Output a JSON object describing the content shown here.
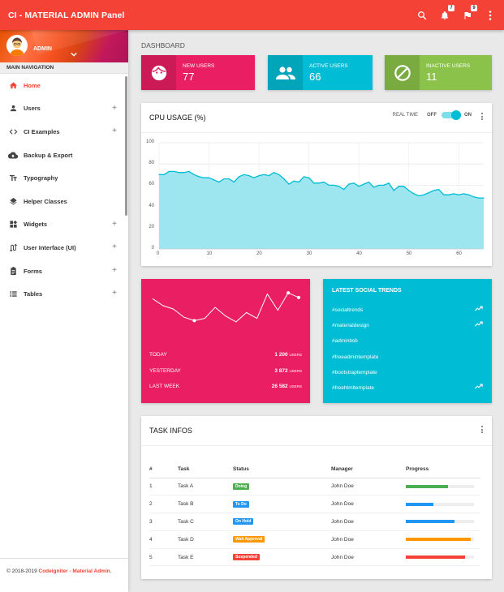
{
  "app": {
    "title": "CI - MATERIAL ADMIN Panel"
  },
  "topbar": {
    "notifications_count": "7",
    "tasks_count": "9",
    "icons": [
      "search-icon",
      "bell-icon",
      "flag-icon",
      "more-vert-icon"
    ]
  },
  "sidebar": {
    "user": {
      "name": "ADMIN"
    },
    "nav_header": "MAIN NAVIGATION",
    "items": [
      {
        "label": "Home",
        "icon": "home-icon",
        "active": true,
        "expandable": false
      },
      {
        "label": "Users",
        "icon": "person-icon",
        "expandable": true
      },
      {
        "label": "CI Examples",
        "icon": "code-icon",
        "expandable": true
      },
      {
        "label": "Backup & Export",
        "icon": "cloud-upload-icon",
        "expandable": false
      },
      {
        "label": "Typography",
        "icon": "text-fields-icon",
        "expandable": false
      },
      {
        "label": "Helper Classes",
        "icon": "layers-icon",
        "expandable": false
      },
      {
        "label": "Widgets",
        "icon": "widgets-icon",
        "expandable": true
      },
      {
        "label": "User Interface (UI)",
        "icon": "swap-calls-icon",
        "expandable": true
      },
      {
        "label": "Forms",
        "icon": "assignment-icon",
        "expandable": true
      },
      {
        "label": "Tables",
        "icon": "view-list-icon",
        "expandable": true
      }
    ],
    "footer": {
      "prefix": "© 2018-2019 ",
      "link": "Codeigniter - Material Admin",
      "suffix": "."
    }
  },
  "page": {
    "title": "DASHBOARD"
  },
  "info_boxes": [
    {
      "label": "NEW USERS",
      "value": "77",
      "color": "#e91e63",
      "icon": "face-icon"
    },
    {
      "label": "ACTIVE USERS",
      "value": "66",
      "color": "#00bcd4",
      "icon": "people-icon"
    },
    {
      "label": "INACTIVE USERS",
      "value": "11",
      "color": "#8bc34a",
      "icon": "block-icon"
    }
  ],
  "cpu": {
    "title": "CPU USAGE (%)",
    "realtime_label": "REAL TIME",
    "off_label": "OFF",
    "on_label": "ON",
    "realtime_on": true
  },
  "chart_data": {
    "type": "area",
    "x": [
      0,
      1,
      2,
      3,
      4,
      5,
      6,
      7,
      8,
      9,
      10,
      11,
      12,
      13,
      14,
      15,
      16,
      17,
      18,
      19,
      20,
      21,
      22,
      23,
      24,
      25,
      26,
      27,
      28,
      29,
      30,
      31,
      32,
      33,
      34,
      35,
      36,
      37,
      38,
      39,
      40,
      41,
      42,
      43,
      44,
      45,
      46,
      47,
      48,
      49,
      50,
      51,
      52,
      53,
      54,
      55,
      56,
      57,
      58,
      59,
      60,
      61,
      62,
      63,
      64,
      65
    ],
    "values": [
      70,
      70,
      73,
      73,
      72,
      72,
      73,
      70,
      68,
      67,
      67,
      65,
      63,
      66,
      66,
      63,
      68,
      70,
      69,
      67,
      69,
      70,
      69,
      72,
      70,
      66,
      61,
      64,
      63,
      68,
      67,
      62,
      62,
      63,
      60,
      60,
      59,
      56,
      61,
      62,
      59,
      61,
      63,
      58,
      60,
      60,
      62,
      55,
      59,
      59,
      55,
      52,
      50,
      51,
      53,
      55,
      56,
      51,
      51,
      52,
      51,
      52,
      51,
      49,
      48,
      48
    ],
    "xlim": [
      0,
      65
    ],
    "ylim": [
      0,
      100
    ],
    "x_ticks": [
      0,
      10,
      20,
      30,
      40,
      50,
      60
    ],
    "y_ticks": [
      0,
      20,
      40,
      60,
      80,
      100
    ],
    "color": "#00bcd4",
    "grid": true
  },
  "overview": {
    "color": "#e91e63",
    "sparkline": [
      60,
      48,
      42,
      28,
      22,
      26,
      45,
      30,
      20,
      36,
      26,
      68,
      40,
      70,
      62
    ],
    "rows": [
      {
        "label": "TODAY",
        "value": "1 200",
        "unit": "USERS"
      },
      {
        "label": "YESTERDAY",
        "value": "3 872",
        "unit": "USERS"
      },
      {
        "label": "LAST WEEK",
        "value": "26 582",
        "unit": "USERS"
      }
    ]
  },
  "social": {
    "title": "LATEST SOCIAL TRENDS",
    "color": "#00bcd4",
    "items": [
      {
        "tag": "#socialtrends",
        "trending": true
      },
      {
        "tag": "#materialdesign",
        "trending": true
      },
      {
        "tag": "#adminbsb",
        "trending": false
      },
      {
        "tag": "#freeadmintemplate",
        "trending": false
      },
      {
        "tag": "#bootstraptemplate",
        "trending": false
      },
      {
        "tag": "#freehtmltemplate",
        "trending": true
      }
    ]
  },
  "tasks": {
    "title": "TASK INFOS",
    "columns": [
      "#",
      "Task",
      "Status",
      "Manager",
      "Progress"
    ],
    "rows": [
      {
        "num": "1",
        "task": "Task A",
        "status": "Doing",
        "status_color": "#4caf50",
        "manager": "John Doe",
        "progress": 62,
        "bar_color": "#4caf50"
      },
      {
        "num": "2",
        "task": "Task B",
        "status": "To Do",
        "status_color": "#2196f3",
        "manager": "John Doe",
        "progress": 40,
        "bar_color": "#2196f3"
      },
      {
        "num": "3",
        "task": "Task C",
        "status": "On Hold",
        "status_color": "#2196f3",
        "manager": "John Doe",
        "progress": 72,
        "bar_color": "#2196f3"
      },
      {
        "num": "4",
        "task": "Task D",
        "status": "Wait Approval",
        "status_color": "#ff9800",
        "manager": "John Doe",
        "progress": 95,
        "bar_color": "#ff9800"
      },
      {
        "num": "5",
        "task": "Task E",
        "status": "Suspended",
        "status_color": "#f44336",
        "manager": "John Doe",
        "progress": 87,
        "bar_color": "#f44336"
      }
    ]
  }
}
